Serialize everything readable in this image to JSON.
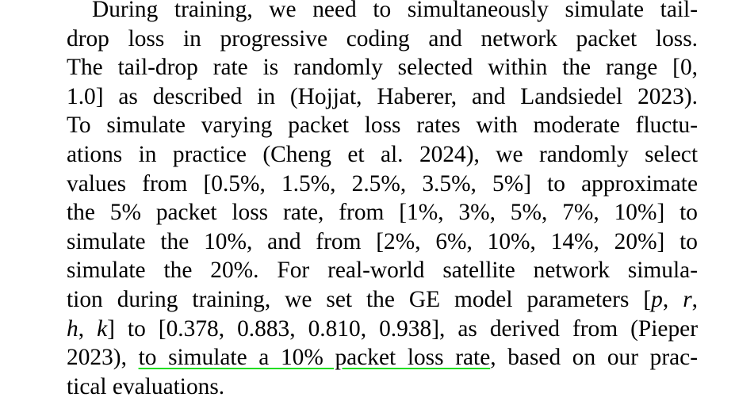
{
  "paragraph": {
    "lines": [
      {
        "text": "During training, we need to simultaneously simulate tail-"
      },
      {
        "text": "drop loss in progressive coding and network packet loss."
      },
      {
        "text": "The tail-drop rate is randomly selected within the range [0,"
      },
      {
        "text": "1.0] as described in (Hojjat, Haberer, and Landsiedel 2023)."
      },
      {
        "text": "To simulate varying packet loss rates with moderate fluctu-"
      },
      {
        "text": "ations in practice (Cheng et al. 2024), we randomly select"
      },
      {
        "text": "values from [0.5%, 1.5%, 2.5%, 3.5%, 5%] to approximate"
      },
      {
        "text": "the 5% packet loss rate, from [1%, 3%, 5%, 7%, 10%] to"
      },
      {
        "text": "simulate the 10%, and from [2%, 6%, 10%, 14%, 20%] to"
      },
      {
        "text": "simulate the 20%. For real-world satellite network simula-"
      },
      {
        "pre": "tion during training, we set the GE model parameters [",
        "v1": "p",
        "mid1": ", ",
        "v2": "r",
        "post": ","
      },
      {
        "pre": "",
        "v1": "h",
        "mid1": ", ",
        "v2": "k",
        "post": "] to [0.378, 0.883, 0.810, 0.938], as derived from (Pieper"
      },
      {
        "pre": "2023), ",
        "highlight": "to simulate a 10% packet loss rate",
        "post": ", based on our prac-"
      },
      {
        "text": "tical evaluations."
      }
    ]
  }
}
